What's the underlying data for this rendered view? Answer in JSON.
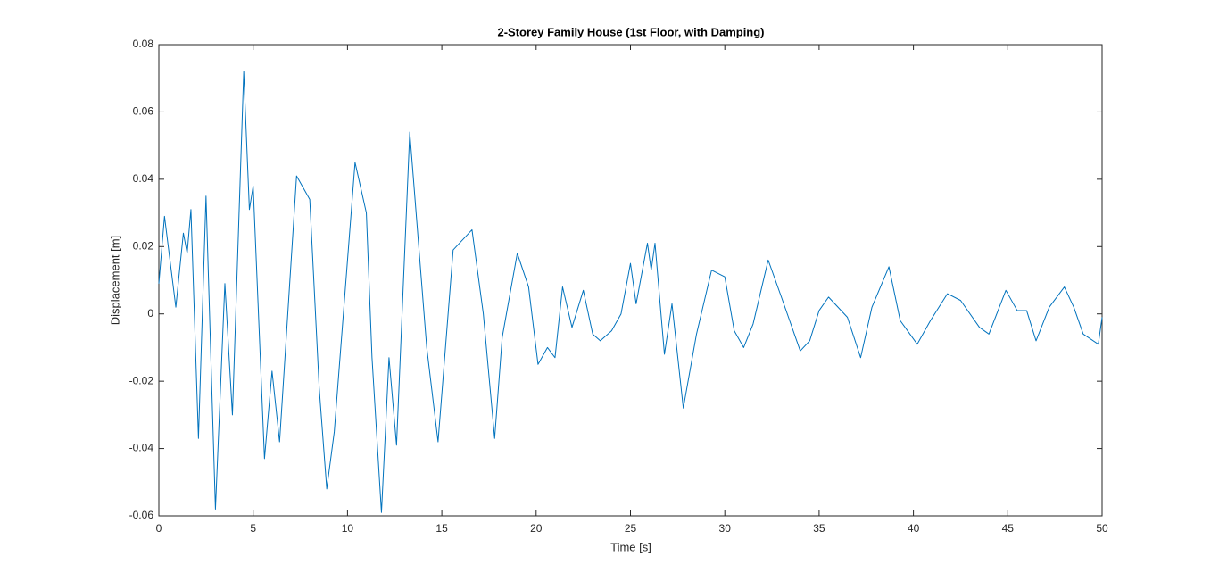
{
  "chart_data": {
    "type": "line",
    "title": "2-Storey Family House (1st Floor, with Damping)",
    "x_label": "Time [s]",
    "y_label": "Displacement [m]",
    "color": "#0072bd",
    "x": [
      0,
      0.3,
      0.9,
      1.3,
      1.5,
      1.7,
      2.1,
      2.5,
      3.0,
      3.5,
      3.9,
      4.5,
      4.8,
      5.0,
      5.6,
      6.0,
      6.4,
      7.3,
      8.0,
      8.5,
      8.9,
      9.3,
      10.4,
      11.0,
      11.3,
      11.8,
      12.2,
      12.6,
      13.3,
      14.2,
      14.8,
      15.6,
      16.6,
      17.2,
      17.8,
      18.2,
      19.0,
      19.6,
      20.1,
      20.6,
      21.0,
      21.4,
      21.9,
      22.5,
      23.0,
      23.4,
      24.0,
      24.5,
      25.0,
      25.3,
      25.9,
      26.1,
      26.3,
      26.8,
      27.2,
      27.8,
      28.5,
      29.3,
      30.0,
      30.5,
      31.0,
      31.5,
      32.3,
      33.0,
      34.0,
      34.5,
      35.0,
      35.5,
      36.5,
      37.2,
      37.8,
      38.7,
      39.3,
      40.2,
      40.9,
      41.8,
      42.5,
      43.5,
      44.0,
      44.9,
      45.5,
      46.0,
      46.5,
      47.2,
      48.0,
      48.5,
      49.0,
      49.8,
      50
    ],
    "values": [
      0.009,
      0.029,
      0.002,
      0.024,
      0.018,
      0.031,
      -0.037,
      0.035,
      -0.058,
      0.009,
      -0.03,
      0.072,
      0.031,
      0.038,
      -0.043,
      -0.017,
      -0.038,
      0.041,
      0.034,
      -0.022,
      -0.052,
      -0.035,
      0.045,
      0.03,
      -0.013,
      -0.059,
      -0.013,
      -0.039,
      0.054,
      -0.01,
      -0.038,
      0.019,
      0.025,
      0.0,
      -0.037,
      -0.007,
      0.018,
      0.008,
      -0.015,
      -0.01,
      -0.013,
      0.008,
      -0.004,
      0.007,
      -0.006,
      -0.008,
      -0.005,
      0.0,
      0.015,
      0.003,
      0.021,
      0.013,
      0.021,
      -0.012,
      0.003,
      -0.028,
      -0.006,
      0.013,
      0.011,
      -0.005,
      -0.01,
      -0.003,
      0.016,
      0.005,
      -0.011,
      -0.008,
      0.001,
      0.005,
      -0.001,
      -0.013,
      0.002,
      0.014,
      -0.002,
      -0.009,
      -0.002,
      0.006,
      0.004,
      -0.004,
      -0.006,
      0.007,
      0.001,
      0.001,
      -0.008,
      0.002,
      0.008,
      0.002,
      -0.006,
      -0.009,
      -0.001
    ],
    "xlim": [
      0,
      50
    ],
    "xticks": [
      0,
      5,
      10,
      15,
      20,
      25,
      30,
      35,
      40,
      45,
      50
    ],
    "ylim": [
      -0.06,
      0.08
    ],
    "yticks": [
      -0.06,
      -0.04,
      -0.02,
      0,
      0.02,
      0.04,
      0.06,
      0.08
    ]
  }
}
